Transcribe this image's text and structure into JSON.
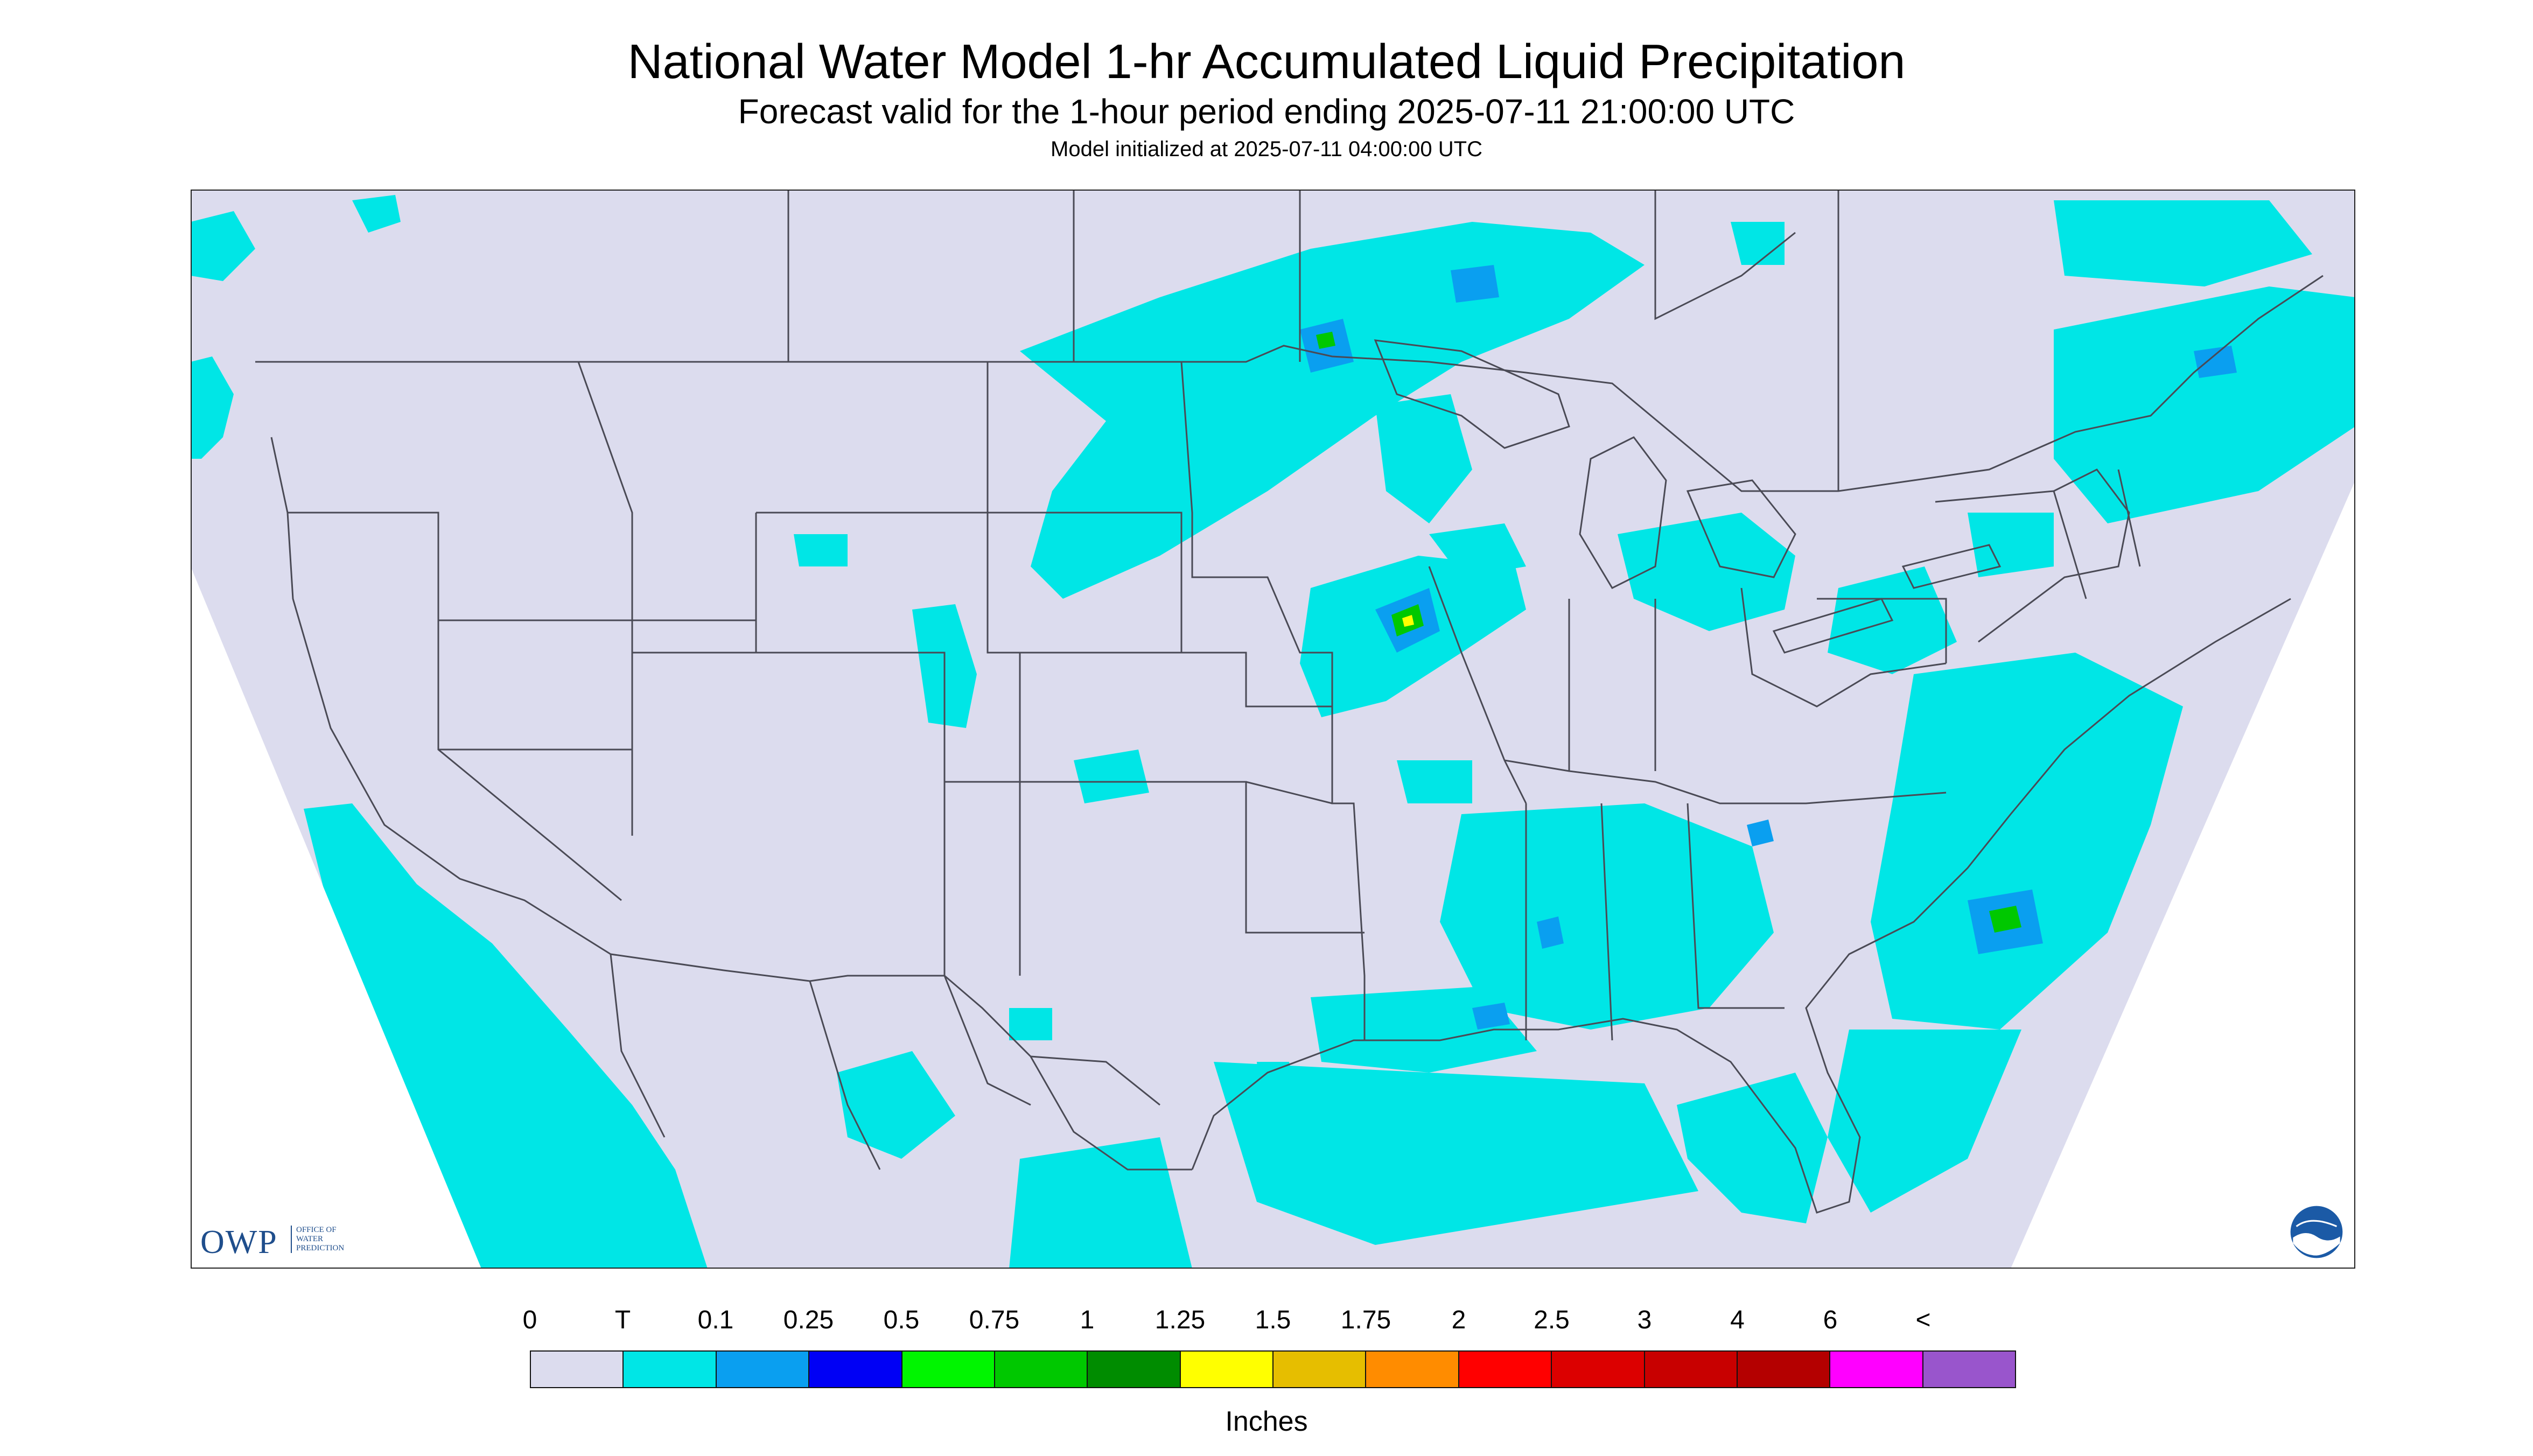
{
  "header": {
    "title": "National Water Model 1-hr Accumulated Liquid Precipitation",
    "subtitle": "Forecast valid for the 1-hour period ending 2025-07-11 21:00:00 UTC",
    "init": "Model initialized at 2025-07-11 04:00:00 UTC"
  },
  "colors": {
    "map_background": "#dcdcee",
    "outside_domain": "#ffffff",
    "boundary_lines": "#4a4a55",
    "precip": "#00e6e6"
  },
  "legend": {
    "ticks": [
      "0",
      "T",
      "0.1",
      "0.25",
      "0.5",
      "0.75",
      "1",
      "1.25",
      "1.5",
      "1.75",
      "2",
      "2.5",
      "3",
      "4",
      "6",
      "<"
    ],
    "swatches": [
      "#dcdcee",
      "#00e6e6",
      "#0a9ff0",
      "#0000f5",
      "#00f500",
      "#00c800",
      "#008c00",
      "#ffff00",
      "#e6be00",
      "#ff8c00",
      "#ff0000",
      "#dc0000",
      "#c80000",
      "#b40000",
      "#ff00ff",
      "#9955cc"
    ],
    "units": "Inches"
  },
  "logos": {
    "owp_letters": "OWP",
    "owp_lines": [
      "OFFICE OF",
      "WATER",
      "PREDICTION"
    ],
    "noaa": "NOAA"
  }
}
